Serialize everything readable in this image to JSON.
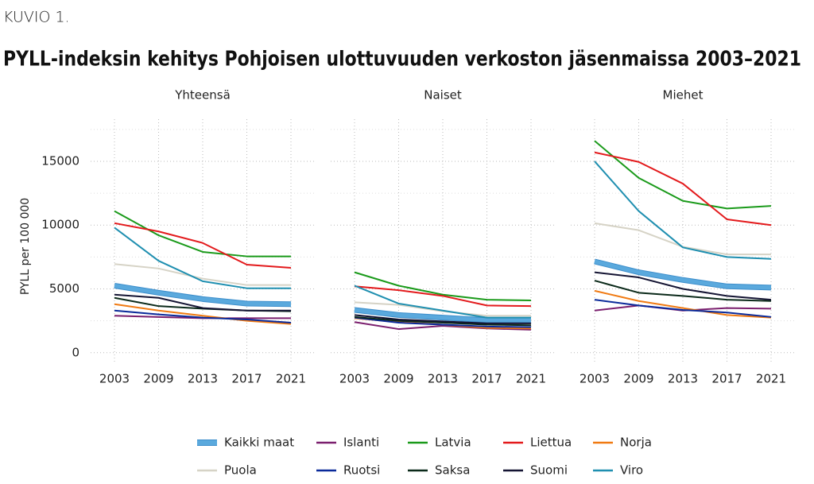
{
  "label": "KUVIO 1.",
  "title": "PYLL-indeksin kehitys Pohjoisen ulottuvuuden verkoston jäsenmaissa 2003–2021",
  "y_label": "PYLL per 100 000",
  "chart_data": [
    {
      "type": "line",
      "title": "Yhteensä",
      "categories": [
        "2003",
        "2009",
        "2013",
        "2017",
        "2021"
      ],
      "ylim": [
        -700,
        18300
      ],
      "yticks": [
        0,
        5000,
        10000,
        15000
      ],
      "minor_yticks": [
        2500,
        7500,
        12500,
        17500
      ],
      "grid": true,
      "series": [
        {
          "name": "Kaikki maat",
          "color": "#5aa9dd",
          "values": [
            5250,
            4700,
            4200,
            3850,
            3800
          ]
        },
        {
          "name": "Islanti",
          "color": "#7b1f6e",
          "values": [
            2900,
            2800,
            2700,
            2700,
            2700
          ]
        },
        {
          "name": "Latvia",
          "color": "#1a9a1a",
          "values": [
            11100,
            9200,
            7900,
            7550,
            7550
          ]
        },
        {
          "name": "Liettua",
          "color": "#e31a1c",
          "values": [
            10150,
            9500,
            8600,
            6900,
            6650
          ]
        },
        {
          "name": "Norja",
          "color": "#f07a12",
          "values": [
            3800,
            3300,
            2900,
            2500,
            2250
          ]
        },
        {
          "name": "Puola",
          "color": "#d6d3c6",
          "values": [
            6950,
            6600,
            5800,
            5300,
            5300
          ]
        },
        {
          "name": "Ruotsi",
          "color": "#0a2a9a",
          "values": [
            3300,
            3000,
            2750,
            2600,
            2350
          ]
        },
        {
          "name": "Saksa",
          "color": "#0b2a1a",
          "values": [
            4300,
            3650,
            3450,
            3300,
            3250
          ]
        },
        {
          "name": "Suomi",
          "color": "#141433",
          "values": [
            4550,
            4300,
            3500,
            3300,
            3300
          ]
        },
        {
          "name": "Viro",
          "color": "#1f8fb0",
          "values": [
            9800,
            7200,
            5600,
            5050,
            5050
          ]
        }
      ]
    },
    {
      "type": "line",
      "title": "Naiset",
      "categories": [
        "2003",
        "2009",
        "2013",
        "2017",
        "2021"
      ],
      "ylim": [
        -700,
        18300
      ],
      "yticks": [
        0,
        5000,
        10000,
        15000
      ],
      "minor_yticks": [
        2500,
        7500,
        12500,
        17500
      ],
      "grid": true,
      "series": [
        {
          "name": "Kaikki maat",
          "color": "#5aa9dd",
          "values": [
            3350,
            2950,
            2750,
            2550,
            2550
          ]
        },
        {
          "name": "Islanti",
          "color": "#7b1f6e",
          "values": [
            2400,
            1850,
            2100,
            1900,
            1800
          ]
        },
        {
          "name": "Latvia",
          "color": "#1a9a1a",
          "values": [
            6300,
            5250,
            4550,
            4150,
            4100
          ]
        },
        {
          "name": "Liettua",
          "color": "#e31a1c",
          "values": [
            5200,
            4900,
            4450,
            3700,
            3650
          ]
        },
        {
          "name": "Norja",
          "color": "#f07a12",
          "values": [
            2700,
            2400,
            2200,
            1950,
            1900
          ]
        },
        {
          "name": "Puola",
          "color": "#d6d3c6",
          "values": [
            3950,
            3750,
            3250,
            2900,
            2900
          ]
        },
        {
          "name": "Ruotsi",
          "color": "#0a2a9a",
          "values": [
            2750,
            2350,
            2200,
            2050,
            2000
          ]
        },
        {
          "name": "Saksa",
          "color": "#0b2a1a",
          "values": [
            2800,
            2500,
            2350,
            2200,
            2150
          ]
        },
        {
          "name": "Suomi",
          "color": "#141433",
          "values": [
            2950,
            2600,
            2450,
            2300,
            2300
          ]
        },
        {
          "name": "Viro",
          "color": "#1f8fb0",
          "values": [
            5250,
            3850,
            3300,
            2750,
            2750
          ]
        }
      ]
    },
    {
      "type": "line",
      "title": "Miehet",
      "categories": [
        "2003",
        "2009",
        "2013",
        "2017",
        "2021"
      ],
      "ylim": [
        -700,
        18300
      ],
      "yticks": [
        0,
        5000,
        10000,
        15000
      ],
      "minor_yticks": [
        2500,
        7500,
        12500,
        17500
      ],
      "grid": true,
      "series": [
        {
          "name": "Kaikki maat",
          "color": "#5aa9dd",
          "values": [
            7150,
            6300,
            5700,
            5200,
            5100
          ]
        },
        {
          "name": "Islanti",
          "color": "#7b1f6e",
          "values": [
            3300,
            3700,
            3300,
            3500,
            3450
          ]
        },
        {
          "name": "Latvia",
          "color": "#1a9a1a",
          "values": [
            16600,
            13700,
            11900,
            11300,
            11500
          ]
        },
        {
          "name": "Liettua",
          "color": "#e31a1c",
          "values": [
            15700,
            14950,
            13250,
            10450,
            10000
          ]
        },
        {
          "name": "Norja",
          "color": "#f07a12",
          "values": [
            4850,
            4050,
            3500,
            2950,
            2750
          ]
        },
        {
          "name": "Puola",
          "color": "#d6d3c6",
          "values": [
            10150,
            9600,
            8300,
            7700,
            7700
          ]
        },
        {
          "name": "Ruotsi",
          "color": "#0a2a9a",
          "values": [
            4150,
            3700,
            3350,
            3150,
            2800
          ]
        },
        {
          "name": "Saksa",
          "color": "#0b2a1a",
          "values": [
            5650,
            4700,
            4450,
            4150,
            4050
          ]
        },
        {
          "name": "Suomi",
          "color": "#141433",
          "values": [
            6300,
            5900,
            5000,
            4450,
            4150
          ]
        },
        {
          "name": "Viro",
          "color": "#1f8fb0",
          "values": [
            15000,
            11100,
            8250,
            7500,
            7350
          ]
        }
      ]
    }
  ]
}
